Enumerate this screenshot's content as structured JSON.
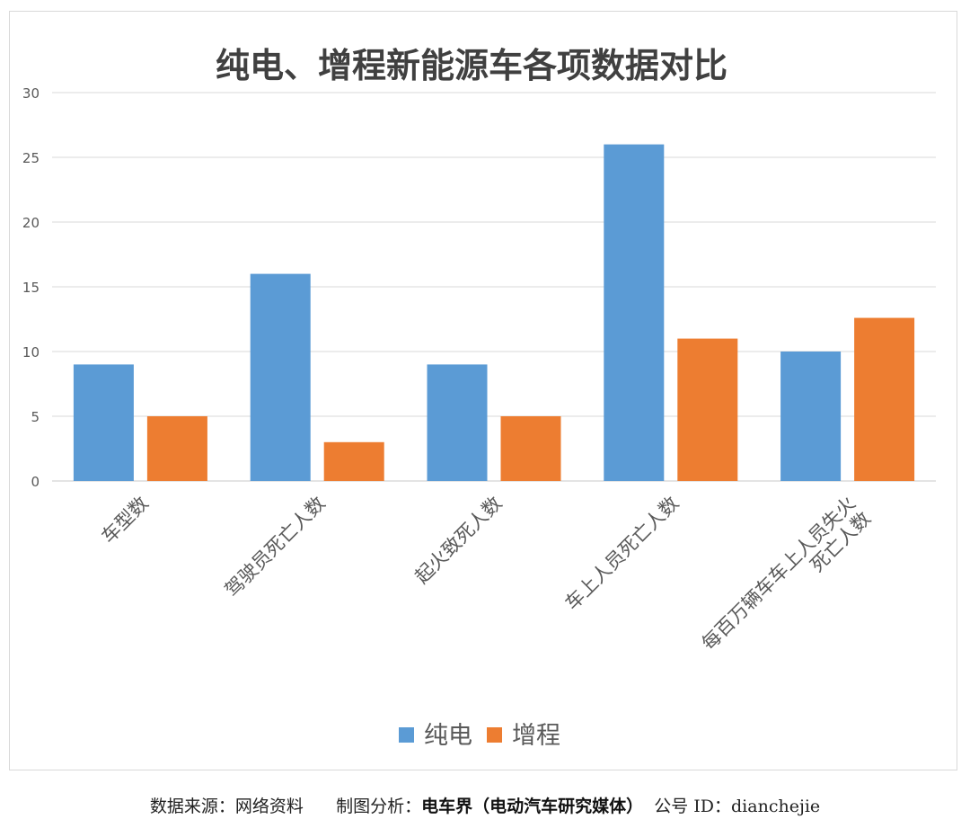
{
  "chart_data": {
    "type": "bar",
    "title": "纯电、增程新能源车各项数据对比",
    "categories": [
      "车型数",
      "驾驶员死亡人数",
      "起火致死人数",
      "车上人员死亡人数",
      "每百万辆车车上人员失火死亡人数"
    ],
    "category_lines": [
      [
        "车型数"
      ],
      [
        "驾驶员死亡人数"
      ],
      [
        "起火致死人数"
      ],
      [
        "车上人员死亡人数"
      ],
      [
        "每百万辆车车上人员失火",
        "死亡人数"
      ]
    ],
    "series": [
      {
        "name": "纯电",
        "values": [
          9,
          16,
          9,
          26,
          10
        ],
        "color": "#5b9bd5"
      },
      {
        "name": "增程",
        "values": [
          5,
          3,
          5,
          11,
          12.6
        ],
        "color": "#ed7d31"
      }
    ],
    "ylim": [
      0,
      30
    ],
    "yticks": [
      0,
      5,
      10,
      15,
      20,
      25,
      30
    ],
    "grid": true,
    "legend": "bottom"
  },
  "footer": {
    "source_label": "数据来源：网络资料",
    "maker_label": "制图分析：",
    "maker_name": "电车界（电动汽车研究媒体）",
    "account": "公号 ID：dianchejie"
  }
}
